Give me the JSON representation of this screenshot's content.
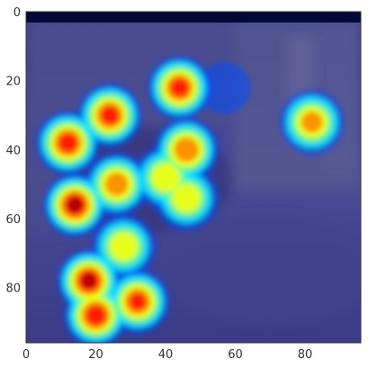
{
  "chart_data": {
    "type": "heatmap",
    "title": "",
    "xlabel": "",
    "ylabel": "",
    "xlim": [
      0,
      96
    ],
    "ylim": [
      96,
      0
    ],
    "x_ticks": [
      "0",
      "20",
      "40",
      "60",
      "80"
    ],
    "y_ticks": [
      "0",
      "20",
      "40",
      "60",
      "80"
    ],
    "grid": false,
    "colormap": "jet",
    "overlay": "heatmap over video frame",
    "background_image": "blurred street scene with people and vehicle",
    "hotspots": [
      {
        "x": 12,
        "y": 38,
        "value": 0.92
      },
      {
        "x": 14,
        "y": 56,
        "value": 0.98
      },
      {
        "x": 18,
        "y": 78,
        "value": 0.97
      },
      {
        "x": 20,
        "y": 88,
        "value": 0.95
      },
      {
        "x": 24,
        "y": 30,
        "value": 0.9
      },
      {
        "x": 26,
        "y": 50,
        "value": 0.82
      },
      {
        "x": 32,
        "y": 84,
        "value": 0.88
      },
      {
        "x": 28,
        "y": 68,
        "value": 0.72
      },
      {
        "x": 44,
        "y": 22,
        "value": 0.9
      },
      {
        "x": 46,
        "y": 40,
        "value": 0.85
      },
      {
        "x": 40,
        "y": 48,
        "value": 0.72
      },
      {
        "x": 46,
        "y": 54,
        "value": 0.72
      },
      {
        "x": 82,
        "y": 32,
        "value": 0.78
      },
      {
        "x": 57,
        "y": 22,
        "value": 0.32
      }
    ],
    "colors": {
      "frame_top": "#000a3a",
      "low": "#1c1f7a",
      "high": "#8b0000"
    }
  }
}
